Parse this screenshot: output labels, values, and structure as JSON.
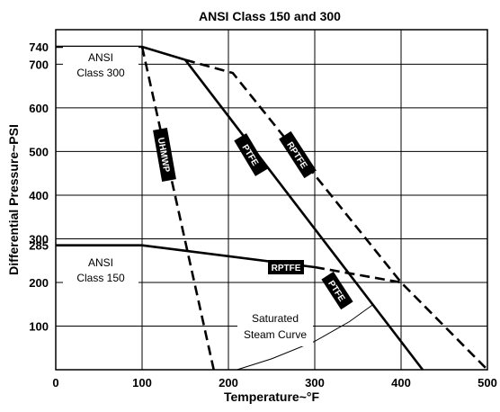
{
  "chart_data": {
    "type": "line",
    "title": "ANSI Class 150 and 300",
    "xlabel": "Temperature~°F",
    "ylabel": "Differential Pressure~PSI",
    "xlim": [
      0,
      500
    ],
    "ylim": [
      0,
      760
    ],
    "x_ticks": [
      0,
      100,
      200,
      300,
      400,
      500
    ],
    "y_ticks": [
      100,
      200,
      285,
      300,
      400,
      500,
      600,
      700,
      740
    ],
    "grid": true,
    "series": [
      {
        "id": "ansi300",
        "style": "solid",
        "x": [
          0,
          100,
          150
        ],
        "y": [
          740,
          740,
          710
        ]
      },
      {
        "id": "ansi150",
        "style": "solid",
        "x": [
          0,
          100,
          300
        ],
        "y": [
          285,
          285,
          235
        ]
      },
      {
        "name": "UHMWP",
        "style": "dashed",
        "x": [
          100,
          183
        ],
        "y": [
          740,
          0
        ]
      },
      {
        "name": "PTFE",
        "style": "solid",
        "x": [
          150,
          425
        ],
        "y": [
          710,
          0
        ]
      },
      {
        "name": "RPTFE",
        "style": "dashed",
        "x": [
          150,
          205,
          400,
          500
        ],
        "y": [
          710,
          680,
          200,
          0
        ]
      },
      {
        "name": "RPTFE",
        "style": "dashed",
        "x": [
          300,
          400
        ],
        "y": [
          235,
          200
        ]
      },
      {
        "name": "Saturated Steam Curve",
        "style": "thin",
        "x": [
          210,
          250,
          300,
          340,
          368
        ],
        "y": [
          0,
          25,
          65,
          110,
          150
        ]
      }
    ],
    "annotations": {
      "ansi300": [
        "ANSI",
        "Class 300"
      ],
      "ansi150": [
        "ANSI",
        "Class 150"
      ],
      "steam": [
        "Saturated",
        "Steam Curve"
      ],
      "uhmwp": "UHMWP",
      "ptfe": "PTFE",
      "rptfe": "RPTFE"
    }
  }
}
